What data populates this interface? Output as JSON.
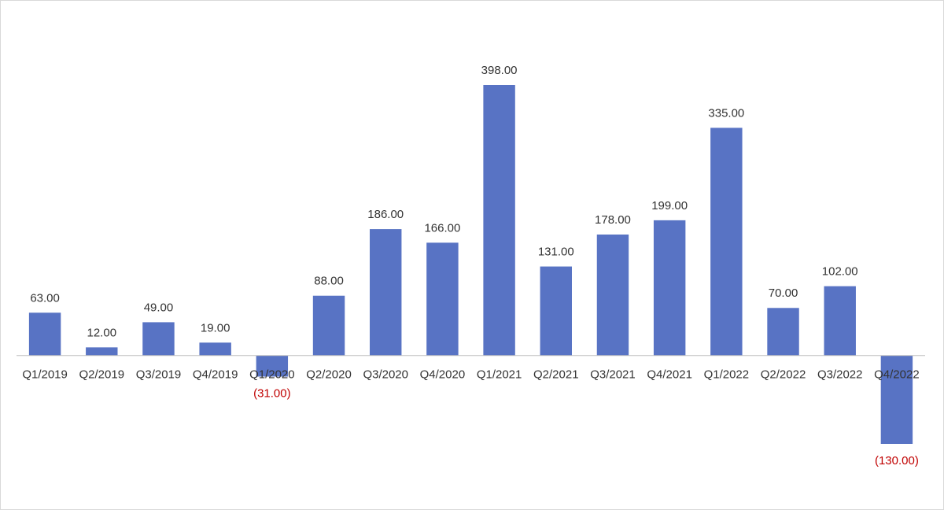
{
  "chart_data": {
    "type": "bar",
    "categories": [
      "Q1/2019",
      "Q2/2019",
      "Q3/2019",
      "Q4/2019",
      "Q1/2020",
      "Q2/2020",
      "Q3/2020",
      "Q4/2020",
      "Q1/2021",
      "Q2/2021",
      "Q3/2021",
      "Q4/2021",
      "Q1/2022",
      "Q2/2022",
      "Q3/2022",
      "Q4/2022"
    ],
    "values": [
      63,
      12,
      49,
      19,
      -31,
      88,
      186,
      166,
      398,
      131,
      178,
      199,
      335,
      70,
      102,
      -130
    ],
    "value_labels": [
      "63.00",
      "12.00",
      "49.00",
      "19.00",
      "(31.00)",
      "88.00",
      "186.00",
      "166.00",
      "398.00",
      "131.00",
      "178.00",
      "199.00",
      "335.00",
      "70.00",
      "102.00",
      "(130.00)"
    ],
    "color": "#5873c4",
    "negative_label_color": "#c00000"
  }
}
